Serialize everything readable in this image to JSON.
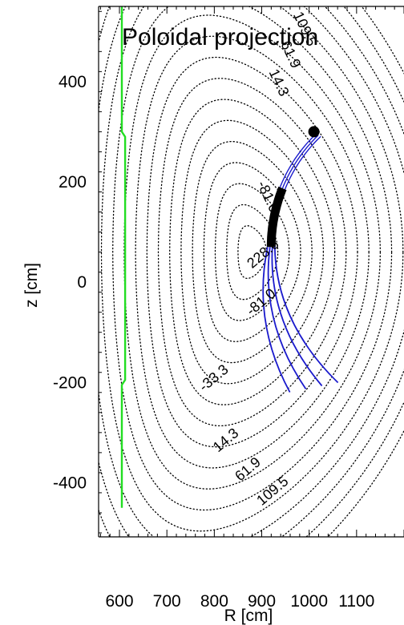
{
  "chart_data": {
    "type": "contour",
    "title": "Poloidal projection",
    "xlabel": "R [cm]",
    "ylabel": "z [cm]",
    "xlim": [
      556,
      1200
    ],
    "ylim": [
      -508,
      550
    ],
    "x_ticks": [
      "600",
      "700",
      "800",
      "900",
      "1000",
      "1100"
    ],
    "y_ticks": [
      "400",
      "200",
      "0",
      "-200",
      "-400"
    ],
    "magnetic_axis": [
      880,
      60
    ],
    "contour_levels": [
      {
        "label": "228.6",
        "a": 30
      },
      {
        "label": "-81.0",
        "a": 75
      },
      {
        "label": "-33.3",
        "a": 150
      },
      {
        "label": "14.3",
        "a": 220
      },
      {
        "label": "61.9",
        "a": 265
      },
      {
        "label": "109.5",
        "a": 310
      }
    ],
    "wall": [
      {
        "R": 605,
        "z": 550
      },
      {
        "R": 605,
        "z": 300
      },
      {
        "R": 612,
        "z": 290
      },
      {
        "R": 612,
        "z": -195
      },
      {
        "R": 605,
        "z": -205
      },
      {
        "R": 605,
        "z": -450
      }
    ],
    "beam": {
      "center": [
        920,
        70
      ],
      "radius": 300,
      "thick_start_deg": 180,
      "thick_end_deg": 157,
      "thin_end_deg": 132,
      "fan_offsets": [
        -30,
        -10,
        10,
        30
      ],
      "fan": {
        "start": [
          920,
          70
        ],
        "control": [
          905,
          -80
        ],
        "end": [
          1010,
          -210
        ]
      }
    },
    "top_marker": {
      "R": 1010,
      "z": 300
    }
  },
  "colors": {
    "wall": "#22dd22",
    "beam": "#1a1acc",
    "beam_thick": "#000000",
    "contour": "#000000"
  }
}
